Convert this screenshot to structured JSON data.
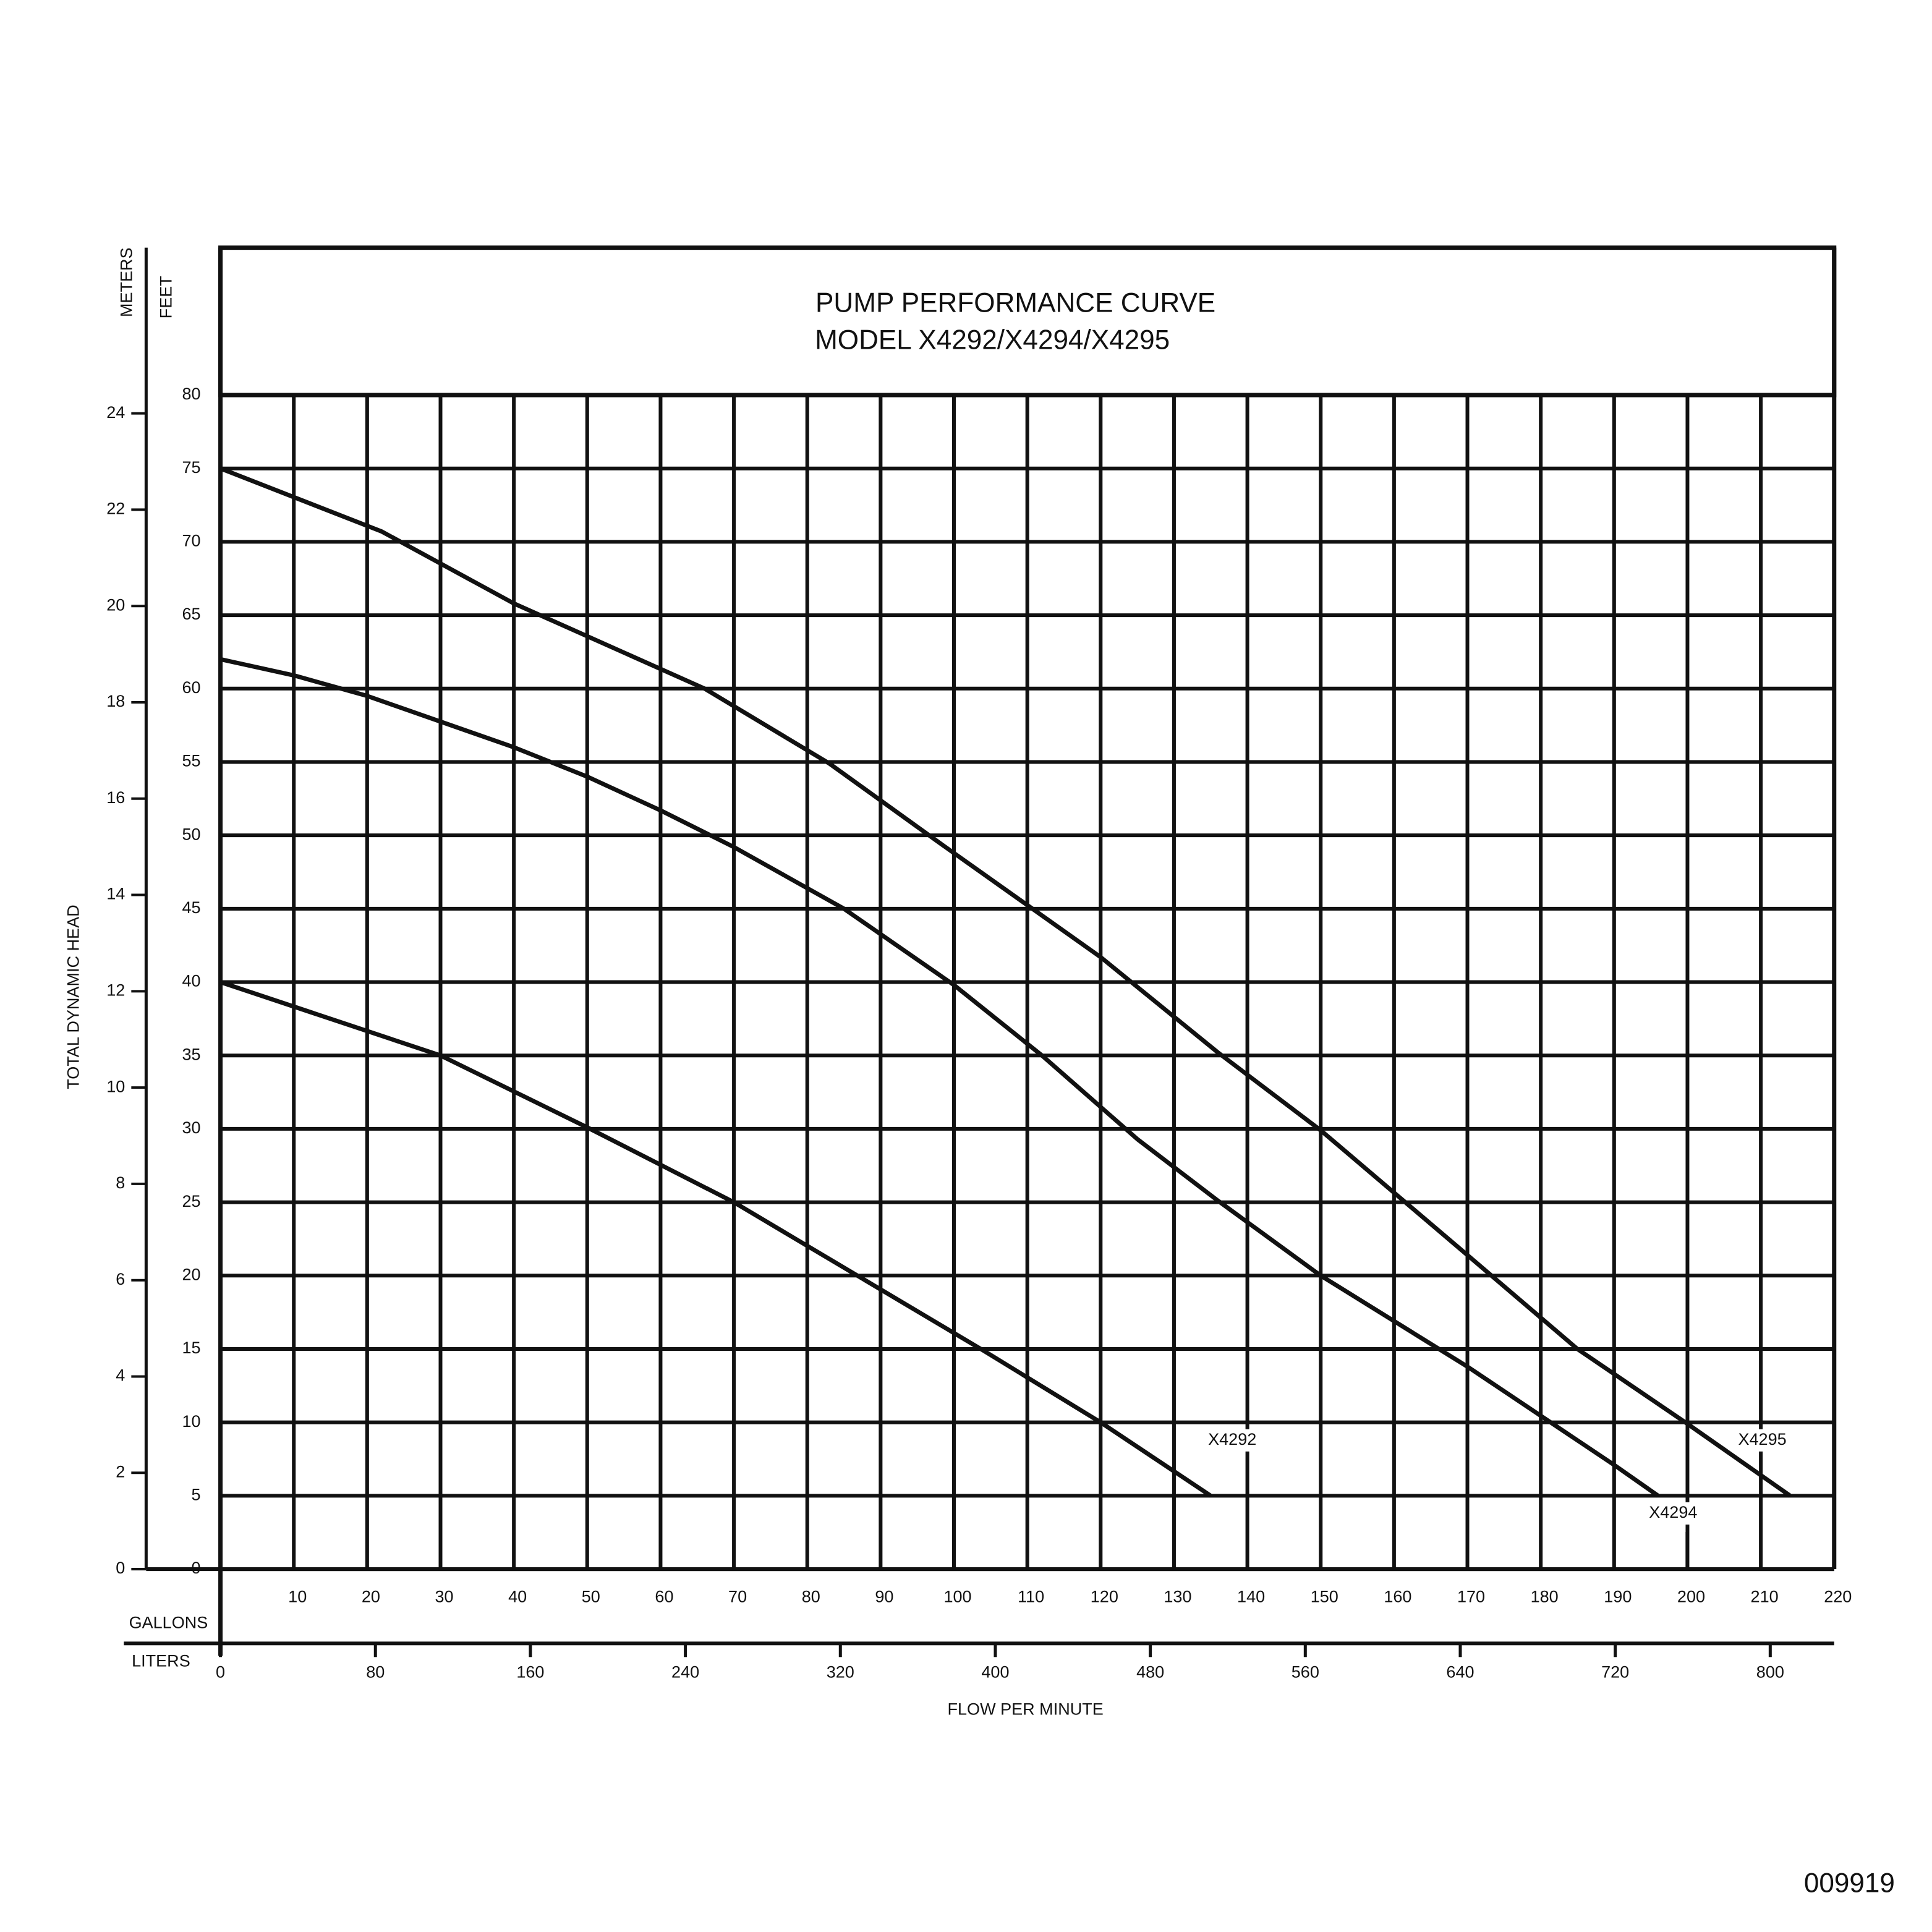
{
  "chart_data": {
    "type": "line",
    "title": "PUMP PERFORMANCE CURVE",
    "subtitle": "MODEL X4292/X4294/X4295",
    "y_title": "TOTAL DYNAMIC HEAD",
    "y_unit": "FEET",
    "y2_unit": "METERS",
    "x_title": "FLOW PER MINUTE",
    "x_unit": "GALLONS",
    "x2_unit": "LITERS",
    "footnote": "009919",
    "xlim": [
      0,
      220
    ],
    "xticks": [
      10,
      20,
      30,
      40,
      50,
      60,
      70,
      80,
      90,
      100,
      110,
      120,
      130,
      140,
      150,
      160,
      170,
      180,
      190,
      200,
      210,
      220
    ],
    "x2lim": [
      0,
      833
    ],
    "x2ticks": [
      0,
      80,
      160,
      240,
      320,
      400,
      480,
      560,
      640,
      720,
      800
    ],
    "ylim": [
      0,
      80
    ],
    "yticks": [
      0,
      5,
      10,
      15,
      20,
      25,
      30,
      35,
      40,
      45,
      50,
      55,
      60,
      65,
      70,
      75,
      80
    ],
    "y2lim": [
      0,
      24.38
    ],
    "y2ticks": [
      0,
      2,
      4,
      6,
      8,
      10,
      12,
      14,
      16,
      18,
      20,
      22,
      24
    ],
    "grid": true,
    "series": [
      {
        "name": "X4292",
        "color": "#111111",
        "x": [
          0,
          30,
          50,
          70,
          104,
          120,
          135
        ],
        "values": [
          40,
          35,
          30.1,
          25,
          14.9,
          10,
          5
        ]
      },
      {
        "name": "X4294",
        "color": "#111111",
        "x": [
          0,
          10,
          20,
          40,
          50,
          60,
          70,
          85,
          100,
          112,
          125,
          136,
          150,
          170,
          190,
          196
        ],
        "values": [
          62,
          60.9,
          59.5,
          56,
          54,
          51.7,
          49.2,
          45,
          39.8,
          35,
          29.3,
          25.1,
          20,
          13.8,
          7.1,
          5
        ]
      },
      {
        "name": "X4295",
        "color": "#111111",
        "x": [
          0,
          22,
          40,
          66,
          83,
          98,
          120,
          136,
          150,
          170,
          185,
          200,
          214
        ],
        "values": [
          75,
          70.7,
          65.8,
          60,
          54.9,
          49.5,
          41.7,
          35.2,
          29.9,
          21.4,
          15,
          9.9,
          5
        ]
      }
    ]
  }
}
